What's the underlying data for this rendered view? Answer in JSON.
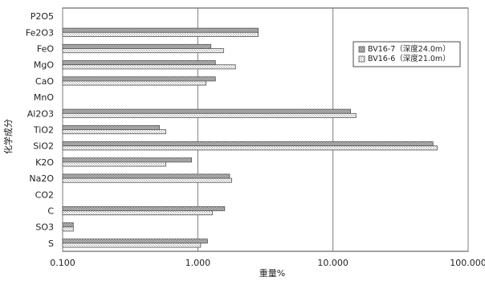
{
  "chart_data": {
    "type": "bar",
    "orientation": "horizontal",
    "xscale": "log",
    "xlim": [
      0.1,
      100
    ],
    "xticks": [
      "0.100",
      "1.000",
      "10.000",
      "100.000"
    ],
    "xlabel": "重量%",
    "ylabel": "化学成分",
    "grid": {
      "x": "major",
      "y": "none"
    },
    "legend_position": "top-right",
    "categories": [
      "P2O5",
      "Fe2O3",
      "FeO",
      "MgO",
      "CaO",
      "MnO",
      "Al2O3",
      "TiO2",
      "SiO2",
      "K2O",
      "Na2O",
      "CO2",
      "C",
      "SO3",
      "S"
    ],
    "series": [
      {
        "name": "BV16-7（深度24.0m）",
        "color": "#8d8d8d",
        "pattern": "dense-checker",
        "values": [
          null,
          2.8,
          1.25,
          1.35,
          1.35,
          null,
          13.5,
          0.52,
          55,
          0.9,
          1.72,
          null,
          1.58,
          0.12,
          1.18
        ]
      },
      {
        "name": "BV16-6（深度21.0m）",
        "color": "#c8c8c8",
        "pattern": "light-checker",
        "values": [
          null,
          2.8,
          1.55,
          1.9,
          1.15,
          null,
          14.8,
          0.58,
          59,
          0.58,
          1.78,
          null,
          1.28,
          0.12,
          1.05
        ]
      }
    ]
  }
}
